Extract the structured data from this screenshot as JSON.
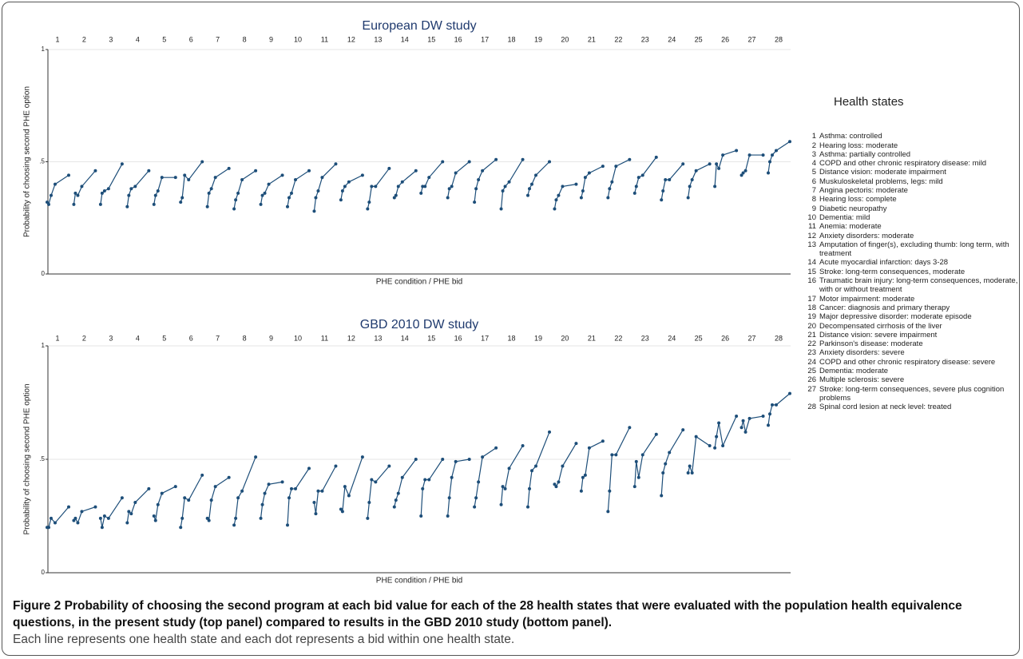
{
  "chart_data": [
    {
      "type": "line",
      "title": "European DW study",
      "xlabel": "PHE condition / PHE bid",
      "ylabel": "Probability of choosing second PHE option",
      "categories": [
        "1",
        "2",
        "3",
        "4",
        "5",
        "6",
        "7",
        "8",
        "9",
        "10",
        "11",
        "12",
        "13",
        "14",
        "15",
        "16",
        "17",
        "18",
        "19",
        "20",
        "21",
        "22",
        "23",
        "24",
        "25",
        "26",
        "27",
        "28"
      ],
      "ylim": [
        0,
        1
      ],
      "yticks": [
        0,
        {
          "value": 0.5,
          "label": ".5"
        },
        1
      ],
      "grid": true,
      "color": "#1d4e79",
      "values": [
        [
          0.32,
          0.31,
          0.35,
          0.4,
          0.44
        ],
        [
          0.31,
          0.36,
          0.35,
          0.39,
          0.46
        ],
        [
          0.31,
          0.36,
          0.37,
          0.38,
          0.49
        ],
        [
          0.3,
          0.35,
          0.38,
          0.39,
          0.46
        ],
        [
          0.31,
          0.35,
          0.37,
          0.43,
          0.43
        ],
        [
          0.32,
          0.34,
          0.44,
          0.42,
          0.5
        ],
        [
          0.3,
          0.36,
          0.38,
          0.43,
          0.47
        ],
        [
          0.29,
          0.33,
          0.36,
          0.42,
          0.46
        ],
        [
          0.31,
          0.35,
          0.36,
          0.4,
          0.44
        ],
        [
          0.3,
          0.34,
          0.36,
          0.42,
          0.46
        ],
        [
          0.28,
          0.34,
          0.37,
          0.43,
          0.49
        ],
        [
          0.33,
          0.37,
          0.39,
          0.41,
          0.44
        ],
        [
          0.29,
          0.32,
          0.39,
          0.39,
          0.47
        ],
        [
          0.34,
          0.35,
          0.39,
          0.41,
          0.46
        ],
        [
          0.36,
          0.39,
          0.39,
          0.43,
          0.5
        ],
        [
          0.34,
          0.38,
          0.39,
          0.45,
          0.5
        ],
        [
          0.32,
          0.38,
          0.42,
          0.46,
          0.51
        ],
        [
          0.29,
          0.37,
          0.39,
          0.41,
          0.51
        ],
        [
          0.35,
          0.38,
          0.4,
          0.44,
          0.5
        ],
        [
          0.29,
          0.33,
          0.35,
          0.39,
          0.4
        ],
        [
          0.34,
          0.37,
          0.43,
          0.45,
          0.48
        ],
        [
          0.34,
          0.38,
          0.41,
          0.48,
          0.51
        ],
        [
          0.36,
          0.39,
          0.43,
          0.44,
          0.52
        ],
        [
          0.33,
          0.37,
          0.42,
          0.42,
          0.49
        ],
        [
          0.34,
          0.39,
          0.42,
          0.46,
          0.49
        ],
        [
          0.39,
          0.49,
          0.47,
          0.53,
          0.55
        ],
        [
          0.44,
          0.45,
          0.46,
          0.53,
          0.53
        ],
        [
          0.45,
          0.5,
          0.53,
          0.55,
          0.59
        ]
      ]
    },
    {
      "type": "line",
      "title": "GBD 2010 DW study",
      "xlabel": "PHE condition / PHE bid",
      "ylabel": "Probability of choosing second PHE option",
      "categories": [
        "1",
        "2",
        "3",
        "4",
        "5",
        "6",
        "7",
        "8",
        "9",
        "10",
        "11",
        "12",
        "13",
        "14",
        "15",
        "16",
        "17",
        "18",
        "19",
        "20",
        "21",
        "22",
        "23",
        "24",
        "25",
        "26",
        "27",
        "28"
      ],
      "ylim": [
        0,
        1
      ],
      "yticks": [
        0,
        {
          "value": 0.5,
          "label": ".5"
        },
        1
      ],
      "grid": true,
      "color": "#1d4e79",
      "values": [
        [
          0.2,
          0.2,
          0.24,
          0.22,
          0.29
        ],
        [
          0.23,
          0.24,
          0.22,
          0.27,
          0.29
        ],
        [
          0.24,
          0.2,
          0.25,
          0.24,
          0.33
        ],
        [
          0.22,
          0.27,
          0.26,
          0.31,
          0.37
        ],
        [
          0.25,
          0.23,
          0.3,
          0.35,
          0.38
        ],
        [
          0.2,
          0.24,
          0.33,
          0.32,
          0.43
        ],
        [
          0.24,
          0.23,
          0.32,
          0.38,
          0.42
        ],
        [
          0.21,
          0.24,
          0.33,
          0.36,
          0.51
        ],
        [
          0.24,
          0.3,
          0.35,
          0.39,
          0.4
        ],
        [
          0.21,
          0.33,
          0.37,
          0.37,
          0.46
        ],
        [
          0.31,
          0.26,
          0.36,
          0.36,
          0.47
        ],
        [
          0.28,
          0.27,
          0.38,
          0.34,
          0.51
        ],
        [
          0.24,
          0.31,
          0.41,
          0.4,
          0.47
        ],
        [
          0.29,
          0.32,
          0.35,
          0.42,
          0.5
        ],
        [
          0.25,
          0.37,
          0.41,
          0.41,
          0.5
        ],
        [
          0.25,
          0.33,
          0.42,
          0.49,
          0.5
        ],
        [
          0.29,
          0.33,
          0.4,
          0.51,
          0.55
        ],
        [
          0.3,
          0.38,
          0.37,
          0.46,
          0.56
        ],
        [
          0.29,
          0.37,
          0.45,
          0.47,
          0.62
        ],
        [
          0.39,
          0.38,
          0.4,
          0.47,
          0.57
        ],
        [
          0.36,
          0.42,
          0.43,
          0.55,
          0.58
        ],
        [
          0.27,
          0.36,
          0.52,
          0.52,
          0.64
        ],
        [
          0.38,
          0.49,
          0.42,
          0.52,
          0.61
        ],
        [
          0.34,
          0.44,
          0.48,
          0.53,
          0.63
        ],
        [
          0.44,
          0.47,
          0.44,
          0.6,
          0.56
        ],
        [
          0.55,
          0.6,
          0.66,
          0.56,
          0.69
        ],
        [
          0.64,
          0.67,
          0.62,
          0.68,
          0.69
        ],
        [
          0.65,
          0.7,
          0.74,
          0.74,
          0.79
        ]
      ]
    }
  ],
  "legend": {
    "title": "Health states",
    "items": [
      {
        "number": "1",
        "label": "Asthma: controlled"
      },
      {
        "number": "2",
        "label": "Hearing loss: moderate"
      },
      {
        "number": "3",
        "label": "Asthma: partially controlled"
      },
      {
        "number": "4",
        "label": "COPD and other chronic respiratory disease: mild"
      },
      {
        "number": "5",
        "label": "Distance vision: moderate impairment"
      },
      {
        "number": "6",
        "label": "Muskuloskeletal problems, legs: mild"
      },
      {
        "number": "7",
        "label": "Angina pectoris: moderate"
      },
      {
        "number": "8",
        "label": "Hearing loss: complete"
      },
      {
        "number": "9",
        "label": "Diabetic neuropathy"
      },
      {
        "number": "10",
        "label": "Dementia: mild"
      },
      {
        "number": "11",
        "label": "Anemia: moderate"
      },
      {
        "number": "12",
        "label": "Anxiety disorders: moderate"
      },
      {
        "number": "13",
        "label": "Amputation of finger(s), excluding thumb: long term, with treatment"
      },
      {
        "number": "14",
        "label": "Acute myocardial infarction: days 3-28"
      },
      {
        "number": "15",
        "label": "Stroke: long-term consequences, moderate"
      },
      {
        "number": "16",
        "label": "Traumatic brain injury: long-term consequences, moderate, with or without treatment"
      },
      {
        "number": "17",
        "label": "Motor impairment: moderate"
      },
      {
        "number": "18",
        "label": "Cancer: diagnosis and primary therapy"
      },
      {
        "number": "19",
        "label": "Major depressive disorder: moderate episode"
      },
      {
        "number": "20",
        "label": "Decompensated cirrhosis of the liver"
      },
      {
        "number": "21",
        "label": "Distance vision: severe impairment"
      },
      {
        "number": "22",
        "label": "Parkinson's disease: moderate"
      },
      {
        "number": "23",
        "label": "Anxiety disorders: severe"
      },
      {
        "number": "24",
        "label": "COPD and other chronic respiratory disease: severe"
      },
      {
        "number": "25",
        "label": "Dementia: moderate"
      },
      {
        "number": "26",
        "label": "Multiple sclerosis: severe"
      },
      {
        "number": "27",
        "label": "Stroke: long-term consequences, severe plus cognition problems"
      },
      {
        "number": "28",
        "label": "Spinal cord lesion at neck level: treated"
      }
    ]
  },
  "caption": {
    "label": "Figure 2",
    "title": "Probability of choosing the second program at each bid value for each of the 28 health states that were evaluated with the population health equivalence questions, in the present study (top panel) compared to results in the GBD 2010 study (bottom panel).",
    "note": "Each line represents one health state and each dot represents a bid within one health state."
  }
}
